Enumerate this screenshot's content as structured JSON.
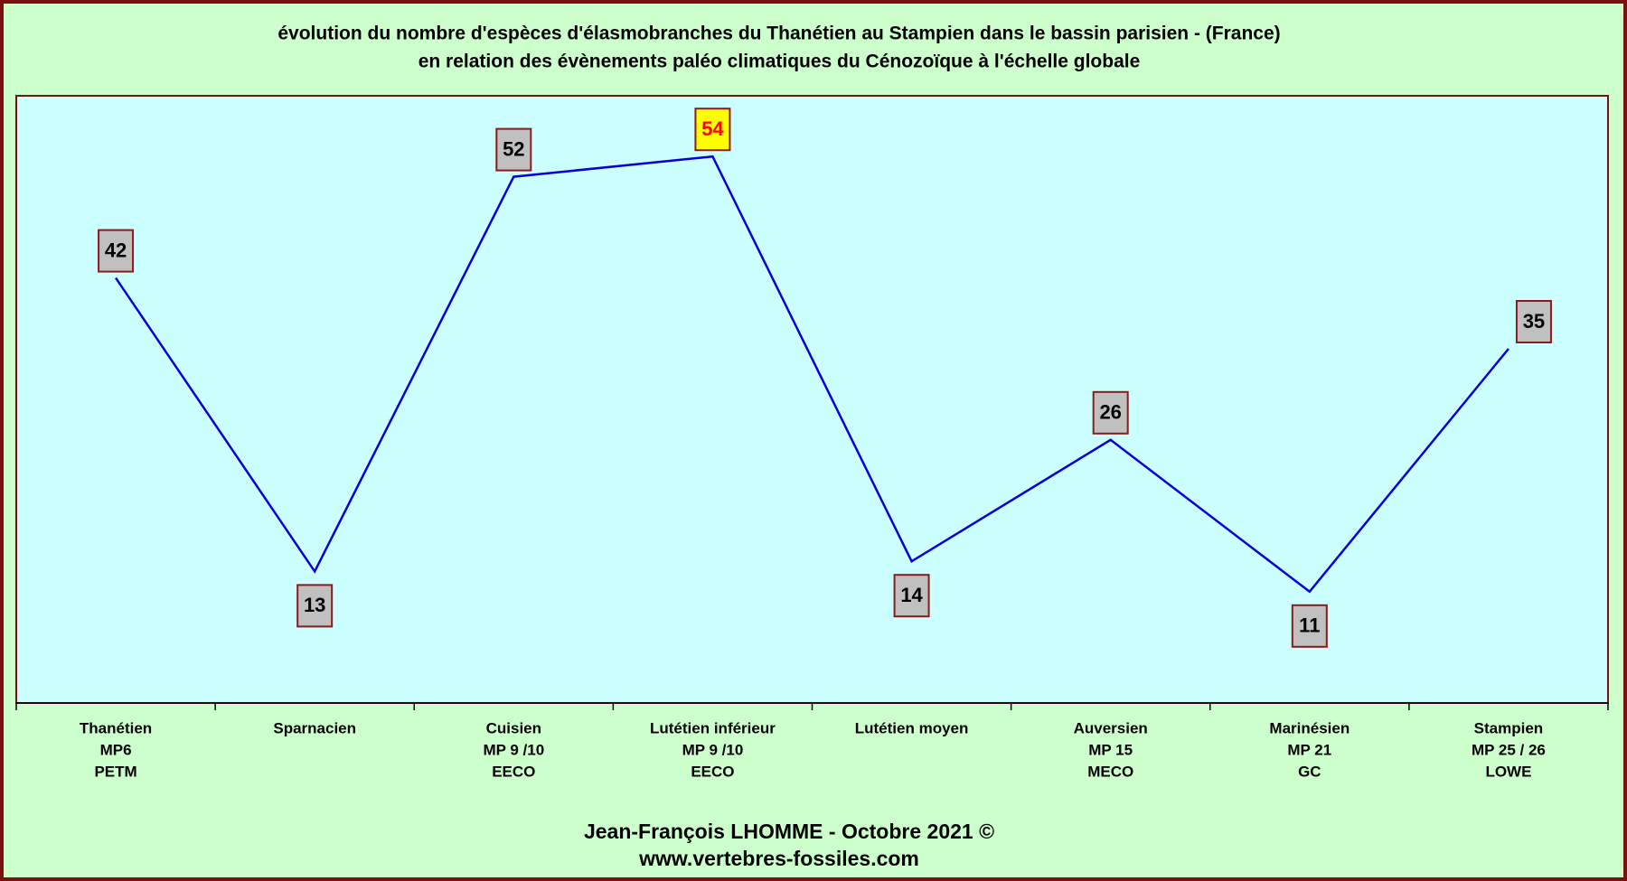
{
  "chart_data": {
    "type": "line",
    "title": [
      "évolution du nombre d'espèces d'élasmobranches du Thanétien au Stampien dans le bassin parisien - (France)",
      "en relation des évènements paléo climatiques du Cénozoïque à l'échelle globale"
    ],
    "categories": [
      [
        "Thanétien",
        "MP6",
        "PETM"
      ],
      [
        "Sparnacien"
      ],
      [
        "Cuisien",
        "MP 9 /10",
        "EECO"
      ],
      [
        "Lutétien inférieur",
        "MP 9 /10",
        "EECO"
      ],
      [
        "Lutétien moyen"
      ],
      [
        "Auversien",
        "MP 15",
        "MECO"
      ],
      [
        "Marinésien",
        "MP 21",
        "GC"
      ],
      [
        "Stampien",
        "MP 25 / 26",
        "LOWE"
      ]
    ],
    "series": [
      {
        "color": "#0000dd",
        "values": [
          42,
          13,
          52,
          54,
          14,
          26,
          11,
          35
        ]
      }
    ],
    "label_colors": [
      "#c0c0c0",
      "#c0c0c0",
      "#c0c0c0",
      "#ffff00",
      "#c0c0c0",
      "#c0c0c0",
      "#c0c0c0",
      "#c0c0c0"
    ],
    "label_text_colors": [
      "#000000",
      "#000000",
      "#000000",
      "#ff0000",
      "#000000",
      "#000000",
      "#000000",
      "#000000"
    ],
    "ylim": [
      0,
      60
    ],
    "footer": [
      "Jean-François LHOMME  -  Octobre 2021 ©",
      "www.vertebres-fossiles.com"
    ]
  }
}
